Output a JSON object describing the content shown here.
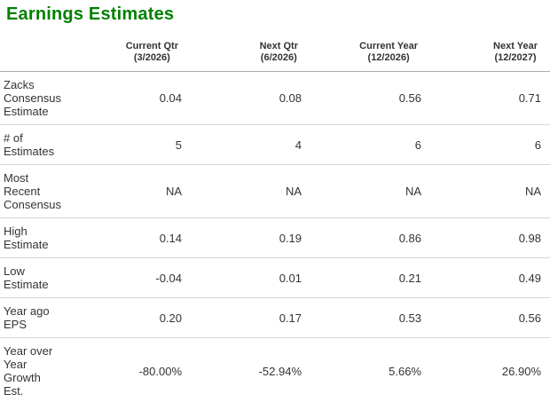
{
  "title": "Earnings Estimates",
  "colors": {
    "title_green": "#008000",
    "text": "#333333",
    "header_divider": "#aaabb2",
    "row_divider": "#d5d5d5"
  },
  "table": {
    "columns": [
      {
        "label": "Current Qtr",
        "period": "(3/2026)"
      },
      {
        "label": "Next Qtr",
        "period": "(6/2026)"
      },
      {
        "label": "Current Year",
        "period": "(12/2026)"
      },
      {
        "label": "Next Year",
        "period": "(12/2027)"
      }
    ],
    "rows": [
      {
        "label": "Zacks\nConsensus\nEstimate",
        "values": [
          "0.04",
          "0.08",
          "0.56",
          "0.71"
        ]
      },
      {
        "label": "# of\nEstimates",
        "values": [
          "5",
          "4",
          "6",
          "6"
        ]
      },
      {
        "label": "Most\nRecent\nConsensus",
        "values": [
          "NA",
          "NA",
          "NA",
          "NA"
        ]
      },
      {
        "label": "High\nEstimate",
        "values": [
          "0.14",
          "0.19",
          "0.86",
          "0.98"
        ]
      },
      {
        "label": "Low\nEstimate",
        "values": [
          "-0.04",
          "0.01",
          "0.21",
          "0.49"
        ]
      },
      {
        "label": "Year ago\nEPS",
        "values": [
          "0.20",
          "0.17",
          "0.53",
          "0.56"
        ]
      },
      {
        "label": "Year over\nYear\nGrowth\nEst.",
        "values": [
          "-80.00%",
          "-52.94%",
          "5.66%",
          "26.90%"
        ]
      }
    ]
  }
}
